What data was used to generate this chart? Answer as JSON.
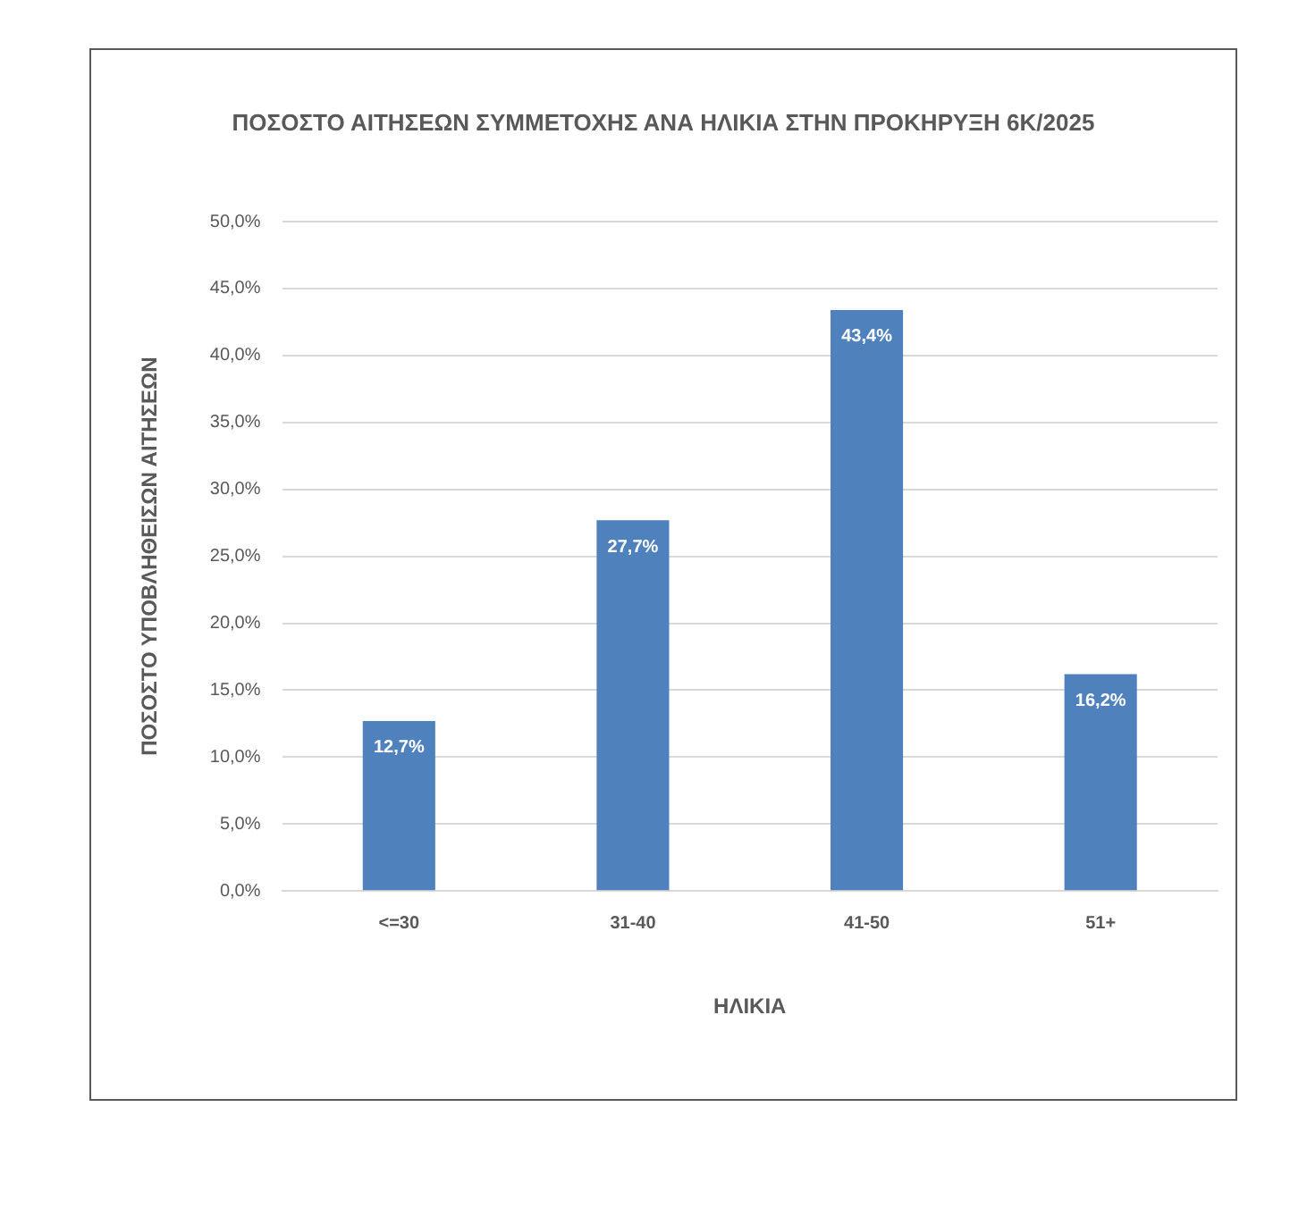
{
  "chart_data": {
    "type": "bar",
    "title": "ΠΟΣΟΣΤΟ ΑΙΤΗΣΕΩΝ ΣΥΜΜΕΤΟΧΗΣ ΑΝΑ ΗΛΙΚΙΑ ΣΤΗΝ ΠΡΟΚΗΡΥΞΗ 6Κ/2025",
    "xlabel": "ΗΛΙΚΙΑ",
    "ylabel": "ΠΟΣΟΣΤΟ ΥΠΟΒΛΗΘΕΙΣΩΝ ΑΙΤΗΣΕΩΝ",
    "categories": [
      "<=30",
      "31-40",
      "41-50",
      "51+"
    ],
    "values": [
      12.7,
      27.7,
      43.4,
      16.2
    ],
    "value_labels": [
      "12,7%",
      "27,7%",
      "43,4%",
      "16,2%"
    ],
    "color": "#4f81bd",
    "ylim": [
      0,
      50
    ],
    "yticks": [
      {
        "value": 0,
        "label": "0,0%"
      },
      {
        "value": 5,
        "label": "5,0%"
      },
      {
        "value": 10,
        "label": "10,0%"
      },
      {
        "value": 15,
        "label": "15,0%"
      },
      {
        "value": 20,
        "label": "20,0%"
      },
      {
        "value": 25,
        "label": "25,0%"
      },
      {
        "value": 30,
        "label": "30,0%"
      },
      {
        "value": 35,
        "label": "35,0%"
      },
      {
        "value": 40,
        "label": "40,0%"
      },
      {
        "value": 45,
        "label": "45,0%"
      },
      {
        "value": 50,
        "label": "50,0%"
      }
    ],
    "grid": "y",
    "legend": false
  }
}
